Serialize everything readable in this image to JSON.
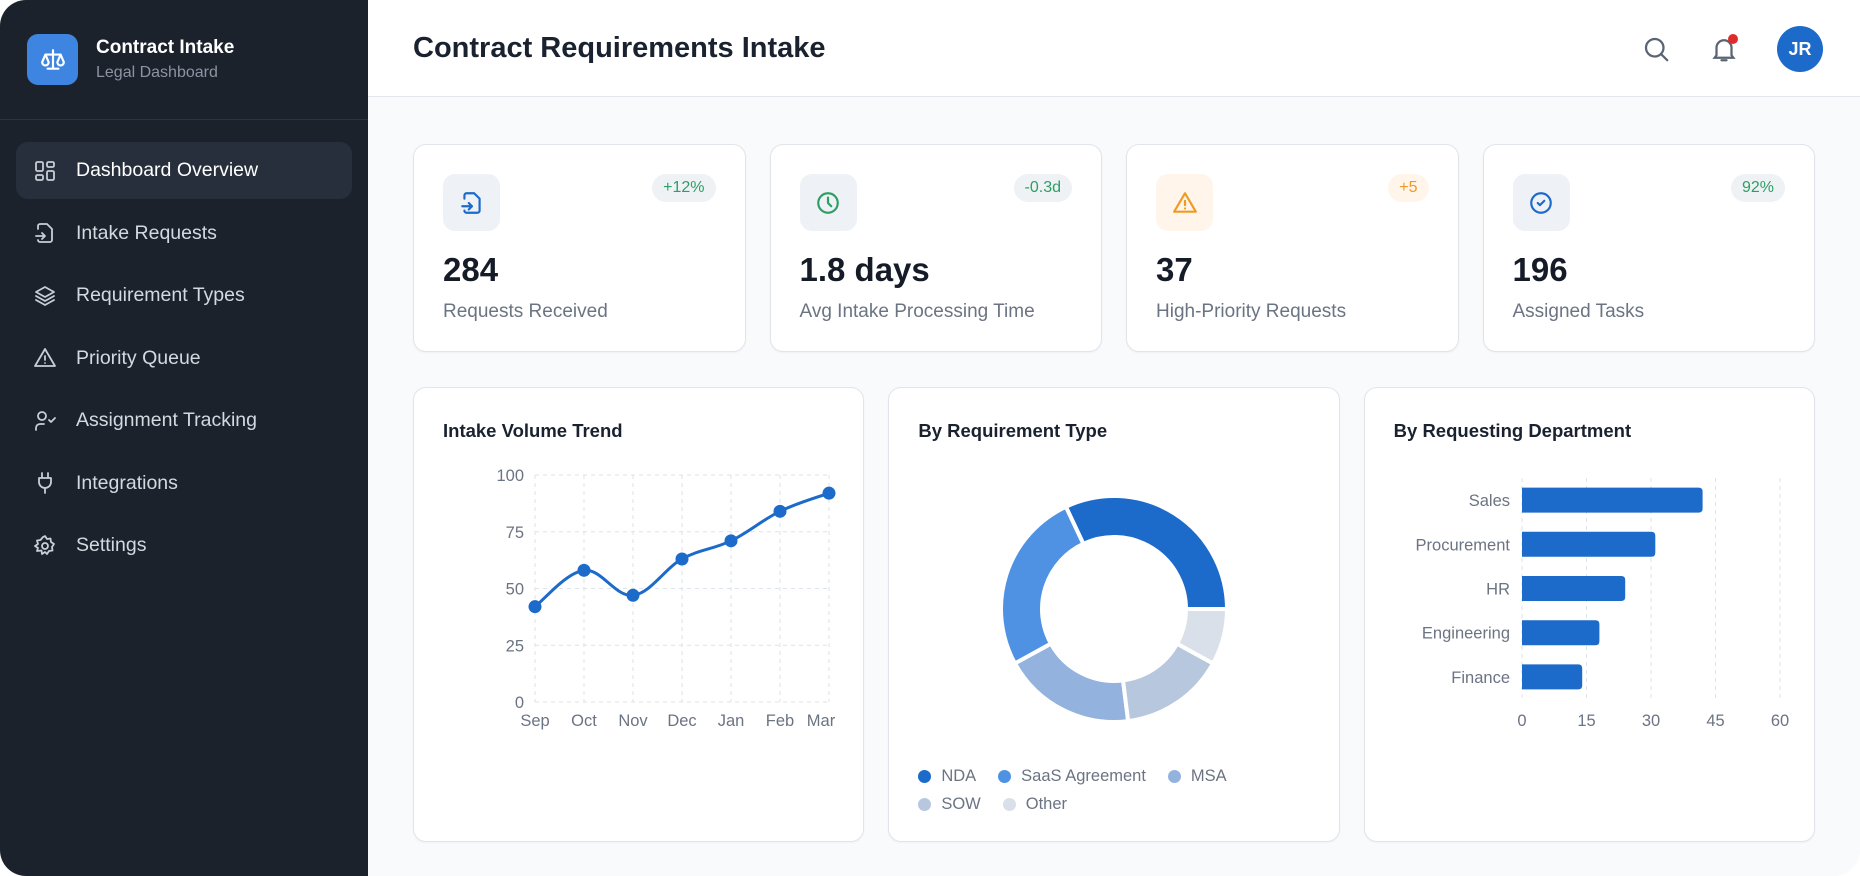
{
  "brand": {
    "title": "Contract Intake",
    "subtitle": "Legal Dashboard"
  },
  "sidebar": {
    "items": [
      {
        "label": "Dashboard Overview",
        "icon": "grid-icon",
        "active": true
      },
      {
        "label": "Intake Requests",
        "icon": "file-import-icon"
      },
      {
        "label": "Requirement Types",
        "icon": "layers-icon"
      },
      {
        "label": "Priority Queue",
        "icon": "warning-icon"
      },
      {
        "label": "Assignment Tracking",
        "icon": "user-check-icon"
      },
      {
        "label": "Integrations",
        "icon": "plug-icon"
      },
      {
        "label": "Settings",
        "icon": "gear-icon"
      }
    ]
  },
  "header": {
    "title": "Contract Requirements Intake",
    "avatar": "JR",
    "has_notification": true
  },
  "stats": [
    {
      "value": "284",
      "label": "Requests Received",
      "badge": "+12%",
      "icon": "file-import-icon",
      "color": "#1c6ac9",
      "badge_color": "#2e9e64"
    },
    {
      "value": "1.8 days",
      "label": "Avg Intake Processing Time",
      "badge": "-0.3d",
      "icon": "clock-icon",
      "color": "#2e9e64",
      "badge_color": "#2e9e64"
    },
    {
      "value": "37",
      "label": "High-Priority Requests",
      "badge": "+5",
      "icon": "warning-icon",
      "color": "#f09a24",
      "badge_color": "#f09a24"
    },
    {
      "value": "196",
      "label": "Assigned Tasks",
      "badge": "92%",
      "icon": "check-circle-icon",
      "color": "#1c6ac9",
      "badge_color": "#2e9e64"
    }
  ],
  "chart_data": [
    {
      "type": "line",
      "title": "Intake Volume Trend",
      "categories": [
        "Sep",
        "Oct",
        "Nov",
        "Dec",
        "Jan",
        "Feb",
        "Mar"
      ],
      "values": [
        42,
        58,
        47,
        63,
        71,
        84,
        92
      ],
      "ylim": [
        0,
        100
      ],
      "yticks": [
        0,
        25,
        50,
        75,
        100
      ],
      "grid": true,
      "color": "#1c6ac9"
    },
    {
      "type": "pie",
      "title": "By Requirement Type",
      "donut": true,
      "labels": [
        "NDA",
        "SaaS Agreement",
        "MSA",
        "SOW",
        "Other"
      ],
      "values": [
        32,
        26,
        19,
        15,
        8
      ],
      "colors": [
        "#1c6ac9",
        "#4f92e3",
        "#93b3de",
        "#b7c8de",
        "#d9e0ea"
      ],
      "legend": "bottom"
    },
    {
      "type": "bar",
      "orientation": "horizontal",
      "title": "By Requesting Department",
      "categories": [
        "Sales",
        "Procurement",
        "HR",
        "Engineering",
        "Finance"
      ],
      "values": [
        42,
        31,
        24,
        18,
        14
      ],
      "xlim": [
        0,
        60
      ],
      "xticks": [
        0,
        15,
        30,
        45,
        60
      ],
      "grid": true,
      "color": "#1c6ac9"
    }
  ]
}
